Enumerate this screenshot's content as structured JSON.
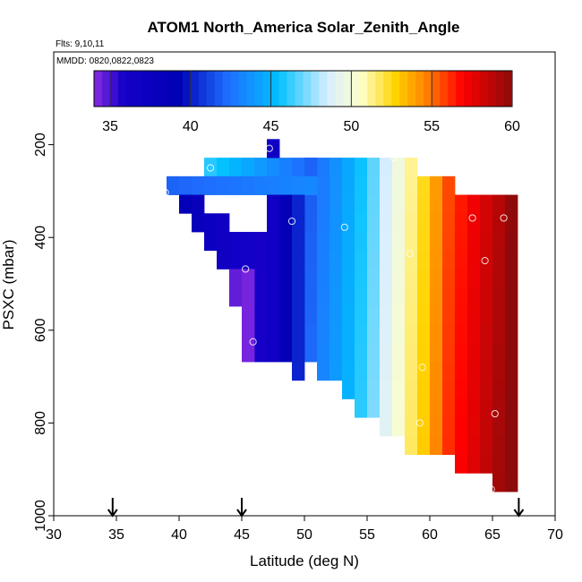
{
  "chart_data": {
    "type": "heatmap",
    "title": "ATOM1 North_America Solar_Zenith_Angle",
    "subtitle_flights": "Flts: 9,10,11",
    "subtitle_dates": "MMDD: 0820,0822,0823",
    "xlabel": "Latitude (deg N)",
    "ylabel": "PSXC (mbar)",
    "xlim": [
      30,
      70
    ],
    "ylim": [
      1000,
      0
    ],
    "y_reversed": true,
    "x_ticks": [
      "30",
      "35",
      "40",
      "45",
      "50",
      "55",
      "60",
      "65",
      "70"
    ],
    "y_ticks": [
      "200",
      "400",
      "600",
      "800",
      "1000"
    ],
    "colorbar": {
      "range": [
        34,
        60
      ],
      "ticks": [
        "35",
        "40",
        "45",
        "50",
        "55",
        "60"
      ],
      "placement": "top"
    },
    "cell_size": {
      "lat": 1,
      "mbar": 40
    },
    "columns": [
      {
        "lat": 42.5,
        "top": 228,
        "bottom": 268,
        "sza": 46.0
      },
      {
        "lat": 43.5,
        "top": 228,
        "bottom": 268,
        "sza": 45.5
      },
      {
        "lat": 44.5,
        "top": 228,
        "bottom": 268,
        "sza": 45.0
      },
      {
        "lat": 45.5,
        "top": 228,
        "bottom": 268,
        "sza": 44.5
      },
      {
        "lat": 46.5,
        "top": 228,
        "bottom": 268,
        "sza": 44.0
      },
      {
        "lat": 47.5,
        "top": 188,
        "bottom": 268,
        "sza": 43.5
      },
      {
        "lat": 48.5,
        "top": 228,
        "bottom": 268,
        "sza": 43.0
      },
      {
        "lat": 49.5,
        "top": 228,
        "bottom": 268,
        "sza": 42.5
      },
      {
        "lat": 50.5,
        "top": 228,
        "bottom": 268,
        "sza": 42.0
      }
    ],
    "regions": [
      {
        "name": "upper-shelf",
        "lat_range": [
          39,
          51
        ],
        "p_range": [
          268,
          308
        ],
        "sza_start": 42.0,
        "sza_end": 43.5
      },
      {
        "name": "wedge-dark",
        "lat_range": [
          42,
          48
        ],
        "p_range": [
          308,
          668
        ],
        "sza_start": 36.0,
        "sza_end": 38.0
      },
      {
        "name": "wedge-purple",
        "lat_range": [
          44,
          46
        ],
        "p_range": [
          468,
          628
        ],
        "sza_start": 34.5,
        "sza_end": 35.0
      }
    ],
    "points": [
      {
        "lat": 47.2,
        "p": 208
      },
      {
        "lat": 51.7,
        "p": 212
      },
      {
        "lat": 57.1,
        "p": 228
      },
      {
        "lat": 42.5,
        "p": 250
      },
      {
        "lat": 38.9,
        "p": 303
      },
      {
        "lat": 49.0,
        "p": 365
      },
      {
        "lat": 53.2,
        "p": 378
      },
      {
        "lat": 63.4,
        "p": 358
      },
      {
        "lat": 65.9,
        "p": 358
      },
      {
        "lat": 58.4,
        "p": 435
      },
      {
        "lat": 64.4,
        "p": 450
      },
      {
        "lat": 45.3,
        "p": 468
      },
      {
        "lat": 45.9,
        "p": 625
      },
      {
        "lat": 50.4,
        "p": 685
      },
      {
        "lat": 59.4,
        "p": 680
      },
      {
        "lat": 59.2,
        "p": 800
      },
      {
        "lat": 65.2,
        "p": 780
      },
      {
        "lat": 64.9,
        "p": 943
      }
    ],
    "arrows_lat": [
      34.7,
      45.0,
      67.1
    ]
  }
}
